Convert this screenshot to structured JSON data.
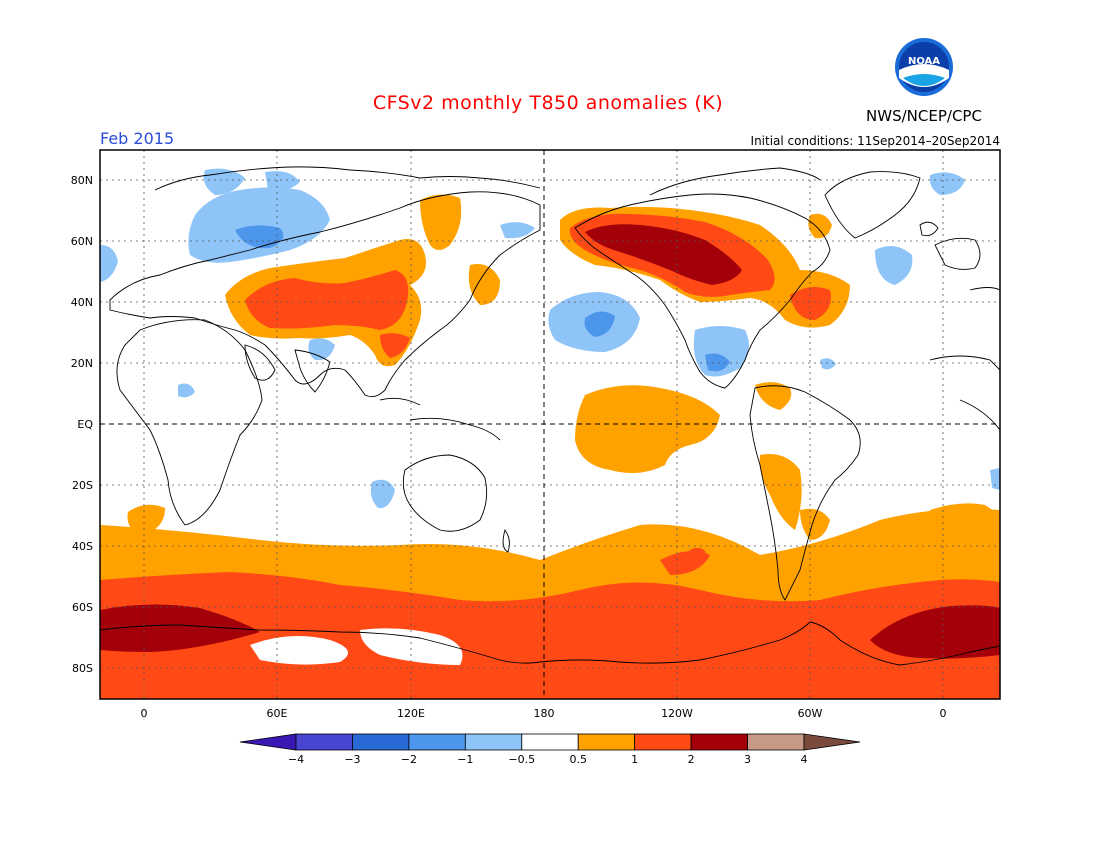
{
  "title": "CFSv2 monthly T850 anomalies (K)",
  "agency": "NWS/NCEP/CPC",
  "logo_text": "NOAA",
  "month_label": "Feb 2015",
  "initial_conditions": "Initial conditions: 11Sep2014–20Sep2014",
  "lat_labels": [
    "80N",
    "60N",
    "40N",
    "20N",
    "EQ",
    "20S",
    "40S",
    "60S",
    "80S"
  ],
  "lon_labels": [
    "0",
    "60E",
    "120E",
    "180",
    "120W",
    "60W",
    "0"
  ],
  "colorbar": {
    "labels": [
      "−4",
      "−3",
      "−2",
      "−1",
      "−0.5",
      "0.5",
      "1",
      "2",
      "3",
      "4"
    ],
    "colors": [
      "#3a18b4",
      "#4a46d4",
      "#2a6ad6",
      "#4c96ec",
      "#8fc4f8",
      "#ffffff",
      "#ffa200",
      "#ff4a16",
      "#a4000a",
      "#c69a86",
      "#7a4a3c"
    ]
  }
}
